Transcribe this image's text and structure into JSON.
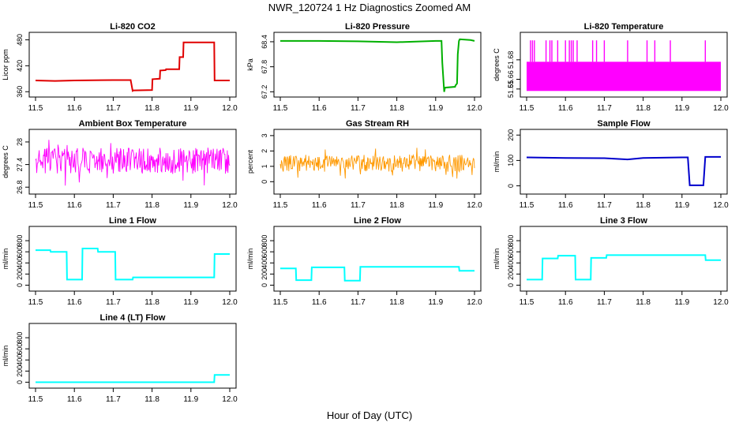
{
  "figure": {
    "title": "NWR_120724  1 Hz Diagnostics Zoomed AM",
    "xlabel": "Hour of Day (UTC)"
  },
  "chart_data": [
    {
      "type": "line",
      "title": "Li-820 CO2",
      "ylabel": "Licor ppm",
      "color": "#e00000",
      "xlim": [
        11.5,
        12.0
      ],
      "ylim": [
        355,
        490
      ],
      "xticks": [
        11.5,
        11.6,
        11.7,
        11.8,
        11.9,
        12.0
      ],
      "yticks": [
        360,
        420,
        480
      ],
      "x": [
        11.5,
        11.55,
        11.6,
        11.7,
        11.745,
        11.75,
        11.752,
        11.8,
        11.801,
        11.82,
        11.821,
        11.835,
        11.836,
        11.87,
        11.871,
        11.88,
        11.881,
        11.96,
        11.961,
        12.0
      ],
      "y": [
        386,
        385,
        386,
        387,
        387,
        362,
        363,
        364,
        389,
        390,
        409,
        410,
        412,
        412,
        440,
        440,
        474,
        474,
        386,
        386
      ]
    },
    {
      "type": "line",
      "title": "Li-820 Pressure",
      "ylabel": "kPa",
      "color": "#00b000",
      "xlim": [
        11.5,
        12.0
      ],
      "ylim": [
        67.15,
        68.55
      ],
      "xticks": [
        11.5,
        11.6,
        11.7,
        11.8,
        11.9,
        12.0
      ],
      "yticks": [
        67.2,
        67.8,
        68.4
      ],
      "x": [
        11.5,
        11.6,
        11.7,
        11.8,
        11.9,
        11.915,
        11.917,
        11.922,
        11.924,
        11.95,
        11.951,
        11.955,
        11.957,
        11.96,
        11.962,
        11.99,
        12.0
      ],
      "y": [
        68.42,
        68.42,
        68.41,
        68.39,
        68.42,
        68.42,
        67.9,
        67.2,
        67.3,
        67.32,
        67.35,
        67.4,
        68.1,
        68.42,
        68.46,
        68.44,
        68.42
      ]
    },
    {
      "type": "line",
      "title": "Li-820 Temperature",
      "ylabel": "degrees C",
      "color": "#ff00ff",
      "xlim": [
        11.5,
        12.0
      ],
      "ylim": [
        51.645,
        51.705
      ],
      "xticks": [
        11.5,
        11.6,
        11.7,
        11.8,
        11.9,
        12.0
      ],
      "yticks": [
        51.65,
        51.66,
        51.68
      ],
      "band": [
        51.648,
        51.678
      ],
      "spikes_at": [
        11.51,
        11.515,
        11.52,
        11.55,
        11.56,
        11.565,
        11.58,
        11.6,
        11.61,
        11.615,
        11.62,
        11.63,
        11.67,
        11.68,
        11.7,
        11.76,
        11.81,
        11.83,
        11.87,
        11.96
      ],
      "spike_top": 51.7
    },
    {
      "type": "line",
      "title": "Ambient Box Temperature",
      "ylabel": "degrees C",
      "color": "#ff00ff",
      "xlim": [
        11.5,
        12.0
      ],
      "ylim": [
        26.7,
        28.25
      ],
      "xticks": [
        11.5,
        11.6,
        11.7,
        11.8,
        11.9,
        12.0
      ],
      "yticks": [
        26.8,
        27.4,
        28.0
      ],
      "center": 27.5,
      "spread": 0.35
    },
    {
      "type": "line",
      "title": "Gas Stream RH",
      "ylabel": "percent",
      "color": "#ff9900",
      "xlim": [
        11.5,
        12.0
      ],
      "ylim": [
        -0.6,
        3.2
      ],
      "xticks": [
        11.5,
        11.6,
        11.7,
        11.8,
        11.9,
        12.0
      ],
      "yticks": [
        0,
        1,
        2,
        3
      ],
      "center": 1.2,
      "spread": 0.55
    },
    {
      "type": "line",
      "title": "Sample Flow",
      "ylabel": "ml/min",
      "color": "#0000cc",
      "xlim": [
        11.5,
        12.0
      ],
      "ylim": [
        -20,
        210
      ],
      "xticks": [
        11.5,
        11.6,
        11.7,
        11.8,
        11.9,
        12.0
      ],
      "yticks": [
        0,
        100,
        200
      ],
      "x": [
        11.5,
        11.6,
        11.7,
        11.76,
        11.8,
        11.9,
        11.915,
        11.92,
        11.955,
        11.96,
        12.0
      ],
      "y": [
        112,
        110,
        109,
        104,
        110,
        112,
        112,
        2,
        2,
        114,
        114
      ]
    },
    {
      "type": "line",
      "title": "Line 1 Flow",
      "ylabel": "ml/min",
      "color": "#00ffff",
      "xlim": [
        11.5,
        12.0
      ],
      "ylim": [
        -50,
        1000
      ],
      "xticks": [
        11.5,
        11.6,
        11.7,
        11.8,
        11.9,
        12.0
      ],
      "yticks": [
        0,
        200,
        400,
        600,
        800
      ],
      "x": [
        11.5,
        11.538,
        11.539,
        11.58,
        11.581,
        11.62,
        11.621,
        11.66,
        11.661,
        11.705,
        11.706,
        11.75,
        11.751,
        11.96,
        11.961,
        12.0
      ],
      "y": [
        630,
        630,
        600,
        600,
        100,
        100,
        660,
        660,
        600,
        600,
        100,
        100,
        140,
        140,
        560,
        560
      ]
    },
    {
      "type": "line",
      "title": "Line 2 Flow",
      "ylabel": "ml/min",
      "color": "#00ffff",
      "xlim": [
        11.5,
        12.0
      ],
      "ylim": [
        -50,
        1000
      ],
      "xticks": [
        11.5,
        11.6,
        11.7,
        11.8,
        11.9,
        12.0
      ],
      "yticks": [
        0,
        200,
        400,
        600,
        800
      ],
      "x": [
        11.5,
        11.54,
        11.541,
        11.58,
        11.581,
        11.665,
        11.666,
        11.705,
        11.706,
        11.96,
        11.961,
        12.0
      ],
      "y": [
        300,
        300,
        90,
        90,
        320,
        320,
        80,
        80,
        330,
        330,
        260,
        260
      ]
    },
    {
      "type": "line",
      "title": "Line 3 Flow",
      "ylabel": "ml/min",
      "color": "#00ffff",
      "xlim": [
        11.5,
        12.0
      ],
      "ylim": [
        -50,
        1000
      ],
      "xticks": [
        11.5,
        11.6,
        11.7,
        11.8,
        11.9,
        12.0
      ],
      "yticks": [
        0,
        200,
        400,
        600,
        800
      ],
      "x": [
        11.5,
        11.54,
        11.541,
        11.58,
        11.581,
        11.625,
        11.626,
        11.665,
        11.666,
        11.705,
        11.706,
        11.96,
        11.961,
        12.0
      ],
      "y": [
        100,
        100,
        480,
        480,
        530,
        530,
        100,
        100,
        490,
        490,
        540,
        540,
        450,
        450
      ]
    },
    {
      "type": "line",
      "title": "Line 4 (LT) Flow",
      "ylabel": "ml/min",
      "color": "#00ffff",
      "xlim": [
        11.5,
        12.0
      ],
      "ylim": [
        -50,
        1000
      ],
      "xticks": [
        11.5,
        11.6,
        11.7,
        11.8,
        11.9,
        12.0
      ],
      "yticks": [
        0,
        200,
        400,
        600,
        800
      ],
      "x": [
        11.5,
        11.96,
        11.961,
        12.0
      ],
      "y": [
        0,
        0,
        130,
        130
      ]
    }
  ]
}
